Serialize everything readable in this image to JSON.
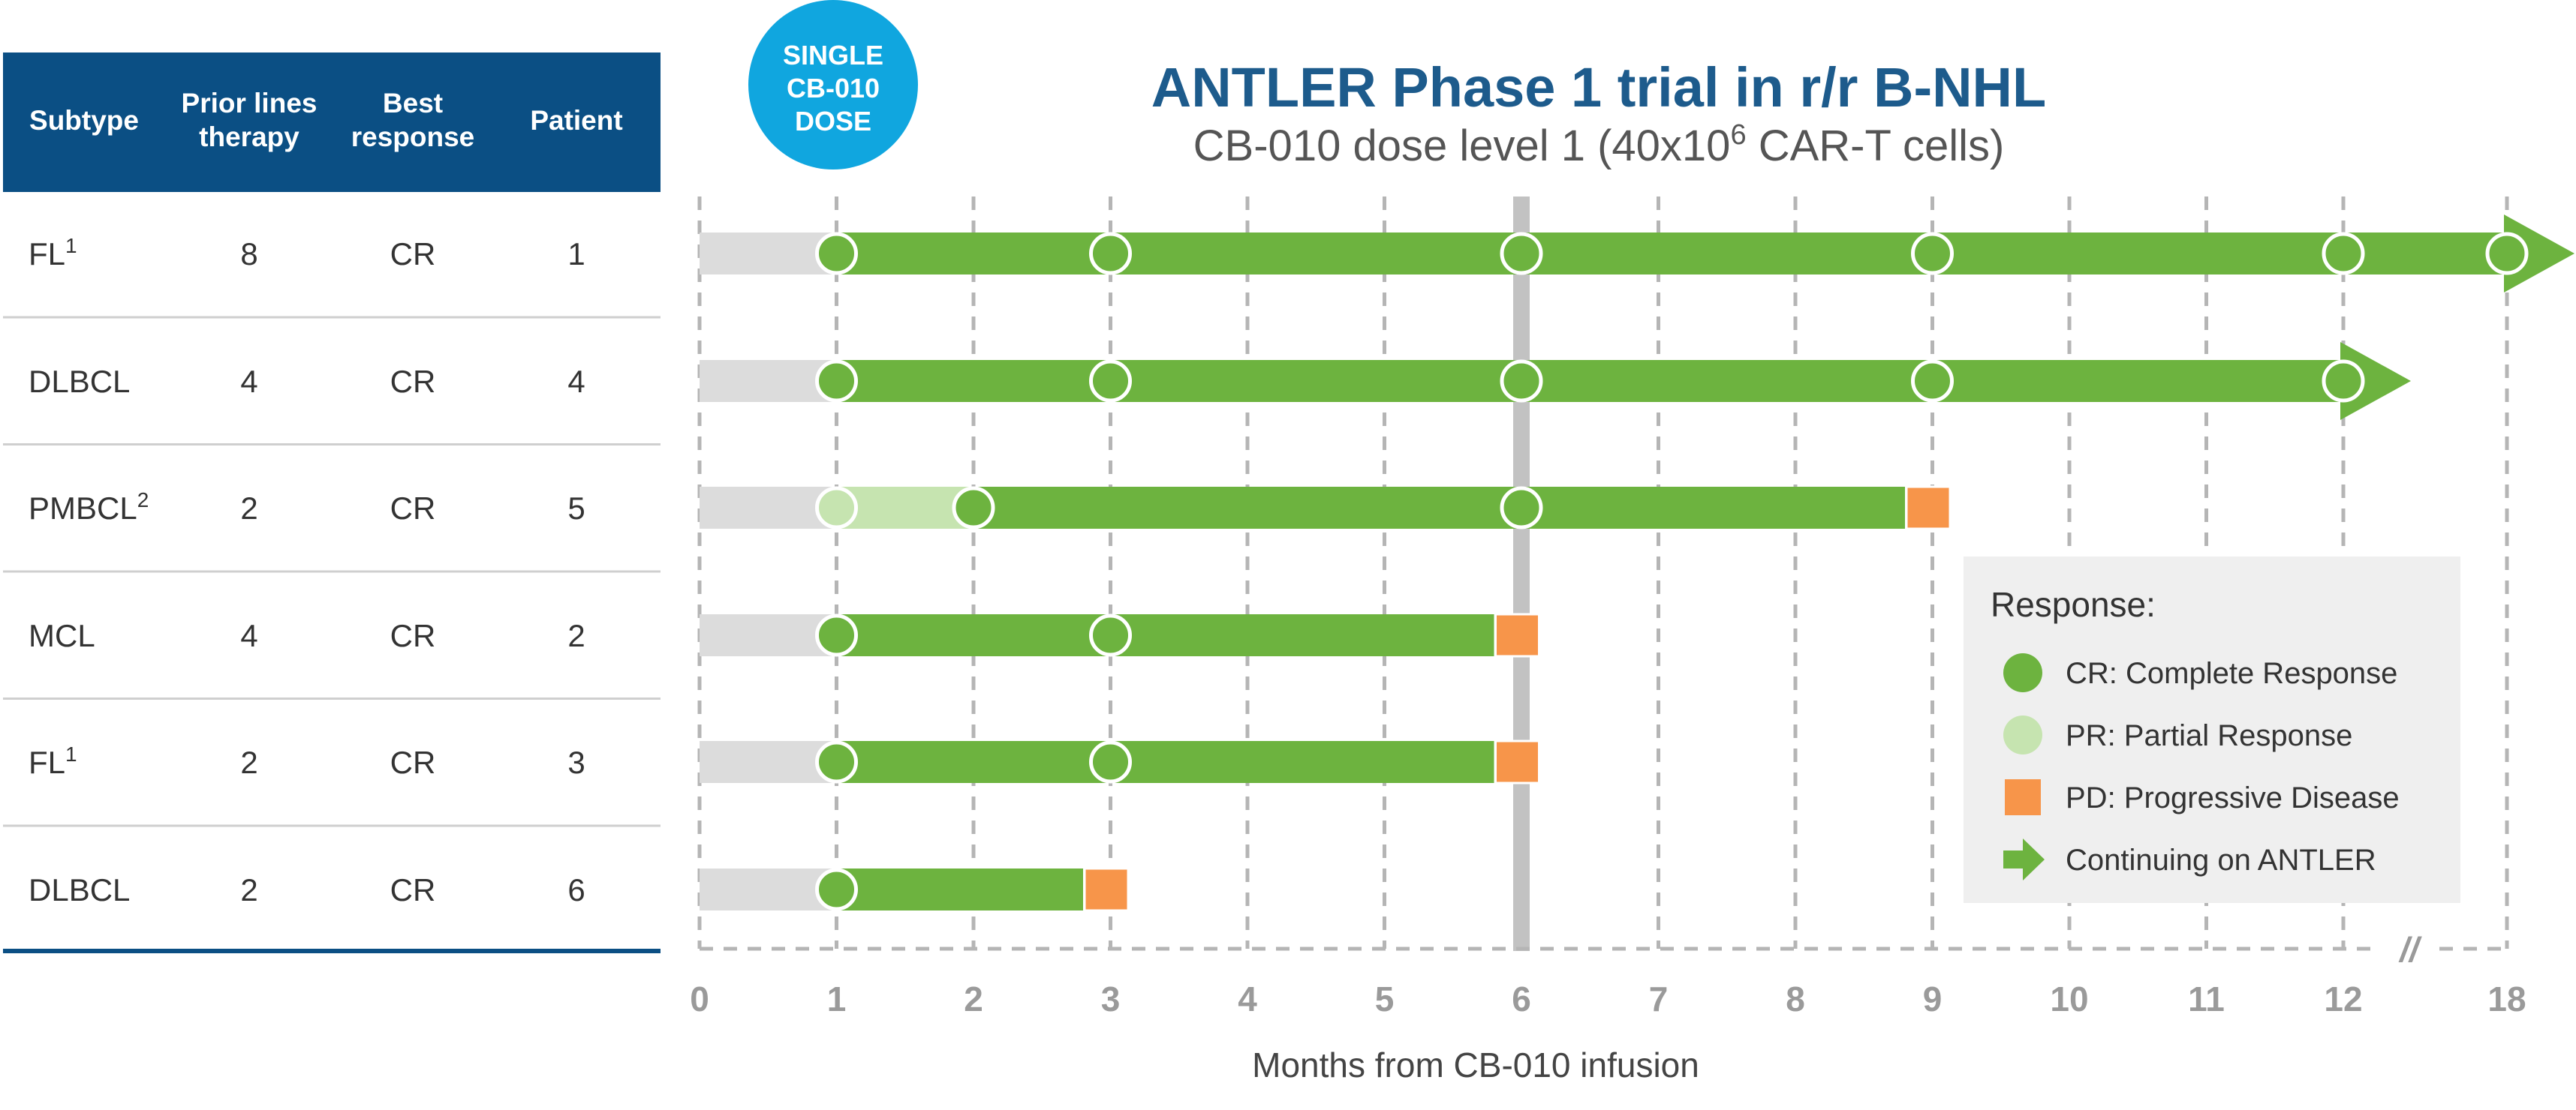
{
  "title": "ANTLER Phase 1 trial in r/r B-NHL",
  "subtitle_main": "CB-010 dose level 1 (40x10",
  "subtitle_sup": "6",
  "subtitle_end": " CAR-T cells)",
  "badge": {
    "line1": "SINGLE",
    "line2": "CB-010",
    "line3": "DOSE"
  },
  "table": {
    "headers": [
      {
        "line1": "Subtype",
        "line2": ""
      },
      {
        "line1": "Prior lines",
        "line2": "therapy"
      },
      {
        "line1": "Best",
        "line2": "response"
      },
      {
        "line1": "Patient",
        "line2": ""
      }
    ],
    "rows": [
      {
        "subtype": "FL",
        "sup": "1",
        "prior": "8",
        "response": "CR",
        "patient": "1"
      },
      {
        "subtype": "DLBCL",
        "sup": "",
        "prior": "4",
        "response": "CR",
        "patient": "4"
      },
      {
        "subtype": "PMBCL",
        "sup": "2",
        "prior": "2",
        "response": "CR",
        "patient": "5"
      },
      {
        "subtype": "MCL",
        "sup": "",
        "prior": "4",
        "response": "CR",
        "patient": "2"
      },
      {
        "subtype": "FL",
        "sup": "1",
        "prior": "2",
        "response": "CR",
        "patient": "3"
      },
      {
        "subtype": "DLBCL",
        "sup": "",
        "prior": "2",
        "response": "CR",
        "patient": "6"
      }
    ]
  },
  "chart_data": {
    "type": "swimmer",
    "xlabel": "Months from CB-010 infusion",
    "x_ticks": [
      "0",
      "1",
      "2",
      "3",
      "4",
      "5",
      "6",
      "7",
      "8",
      "9",
      "10",
      "11",
      "12",
      "18"
    ],
    "axis_break_symbol": "//",
    "highlight_month": 6,
    "pre_infusion_end": 1,
    "patients": [
      {
        "patient": "1",
        "cr_start": 1,
        "end": 18,
        "assessments": [
          {
            "t": 1,
            "r": "CR"
          },
          {
            "t": 3,
            "r": "CR"
          },
          {
            "t": 6,
            "r": "CR"
          },
          {
            "t": 9,
            "r": "CR"
          },
          {
            "t": 12,
            "r": "CR"
          },
          {
            "t": 18,
            "r": "CR"
          }
        ],
        "progression": null,
        "continuing": true
      },
      {
        "patient": "4",
        "cr_start": 1,
        "end": 12,
        "assessments": [
          {
            "t": 1,
            "r": "CR"
          },
          {
            "t": 3,
            "r": "CR"
          },
          {
            "t": 6,
            "r": "CR"
          },
          {
            "t": 9,
            "r": "CR"
          },
          {
            "t": 12,
            "r": "CR"
          }
        ],
        "progression": null,
        "continuing": true
      },
      {
        "patient": "5",
        "pr_start": 1,
        "cr_start": 2,
        "end": 8.8,
        "assessments": [
          {
            "t": 1,
            "r": "PR"
          },
          {
            "t": 2,
            "r": "CR"
          },
          {
            "t": 6,
            "r": "CR"
          }
        ],
        "progression": 8.8,
        "continuing": false
      },
      {
        "patient": "2",
        "cr_start": 1,
        "end": 5.8,
        "assessments": [
          {
            "t": 1,
            "r": "CR"
          },
          {
            "t": 3,
            "r": "CR"
          }
        ],
        "progression": 5.8,
        "continuing": false
      },
      {
        "patient": "3",
        "cr_start": 1,
        "end": 5.8,
        "assessments": [
          {
            "t": 1,
            "r": "CR"
          },
          {
            "t": 3,
            "r": "CR"
          }
        ],
        "progression": 5.8,
        "continuing": false
      },
      {
        "patient": "6",
        "cr_start": 1,
        "end": 2.8,
        "assessments": [
          {
            "t": 1,
            "r": "CR"
          }
        ],
        "progression": 2.8,
        "continuing": false
      }
    ],
    "legend": {
      "title": "Response:",
      "items": [
        {
          "key": "CR",
          "label": "CR: Complete Response",
          "shape": "circle"
        },
        {
          "key": "PR",
          "label": "PR: Partial Response",
          "shape": "circle"
        },
        {
          "key": "PD",
          "label": "PD: Progressive Disease",
          "shape": "square"
        },
        {
          "key": "continuing",
          "label": "Continuing on ANTLER",
          "shape": "arrow"
        }
      ]
    },
    "colors": {
      "CR": "#6db33f",
      "PR": "#c6e4b0",
      "PD": "#f7954a",
      "pre": "#dcdcdc",
      "header": "#0b4f84",
      "badge": "#10a6df",
      "grid": "#b5b5b5"
    }
  }
}
